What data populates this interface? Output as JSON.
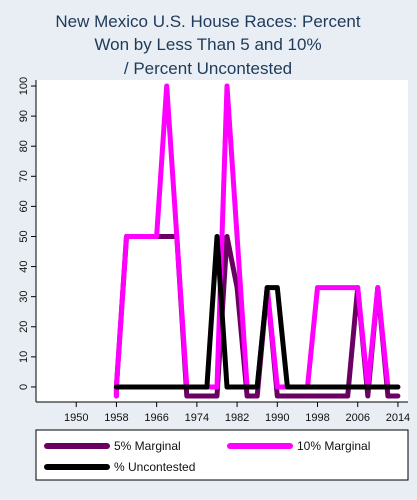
{
  "chart_data": {
    "type": "line",
    "title": [
      "New Mexico U.S. House Races: Percent",
      "Won by Less Than 5 and 10%",
      "/ Percent Uncontested"
    ],
    "xlabel": "",
    "ylabel": "",
    "xlim": [
      1942,
      2016
    ],
    "ylim": [
      -5,
      102
    ],
    "x_ticks": [
      1950,
      1958,
      1966,
      1974,
      1982,
      1990,
      1998,
      2006,
      2014
    ],
    "y_ticks": [
      0,
      10,
      20,
      30,
      40,
      50,
      60,
      70,
      80,
      90,
      100
    ],
    "grid": false,
    "legend_position": "bottom",
    "series": [
      {
        "name": "5% Marginal",
        "color": "#6b0063",
        "x": [
          1958,
          1958,
          1960,
          1962,
          1964,
          1966,
          1968,
          1970,
          1972,
          1974,
          1976,
          1978,
          1980,
          1982,
          1984,
          1986,
          1988,
          1990,
          1992,
          1994,
          1996,
          1998,
          2000,
          2002,
          2004,
          2006,
          2008,
          2010,
          2012,
          2014
        ],
        "values": [
          -3,
          0,
          50,
          50,
          50,
          50,
          50,
          50,
          -3,
          -3,
          -3,
          -3,
          50,
          33,
          -3,
          -3,
          33,
          -3,
          -3,
          -3,
          -3,
          -3,
          -3,
          -3,
          -3,
          33,
          -3,
          33,
          -3,
          -3
        ]
      },
      {
        "name": "10% Marginal",
        "color": "#ff00ff",
        "x": [
          1958,
          1958,
          1960,
          1962,
          1964,
          1966,
          1968,
          1970,
          1972,
          1974,
          1976,
          1978,
          1980,
          1982,
          1984,
          1986,
          1988,
          1990,
          1992,
          1994,
          1996,
          1998,
          2000,
          2002,
          2004,
          2006,
          2008,
          2010,
          2012,
          2014
        ],
        "values": [
          -3,
          0,
          50,
          50,
          50,
          50,
          100,
          50,
          0,
          0,
          0,
          0,
          100,
          50,
          0,
          0,
          33,
          0,
          0,
          0,
          0,
          33,
          33,
          33,
          33,
          33,
          0,
          33,
          0,
          0
        ]
      },
      {
        "name": "% Uncontested",
        "color": "#000000",
        "x": [
          1958,
          1960,
          1962,
          1964,
          1966,
          1968,
          1970,
          1972,
          1974,
          1976,
          1978,
          1980,
          1982,
          1984,
          1986,
          1988,
          1990,
          1992,
          1994,
          1996,
          1998,
          2000,
          2002,
          2004,
          2006,
          2008,
          2010,
          2012,
          2014
        ],
        "values": [
          0,
          0,
          0,
          0,
          0,
          0,
          0,
          0,
          0,
          0,
          50,
          0,
          0,
          0,
          0,
          33,
          33,
          0,
          0,
          0,
          0,
          0,
          0,
          0,
          0,
          0,
          0,
          0,
          0
        ]
      }
    ]
  }
}
